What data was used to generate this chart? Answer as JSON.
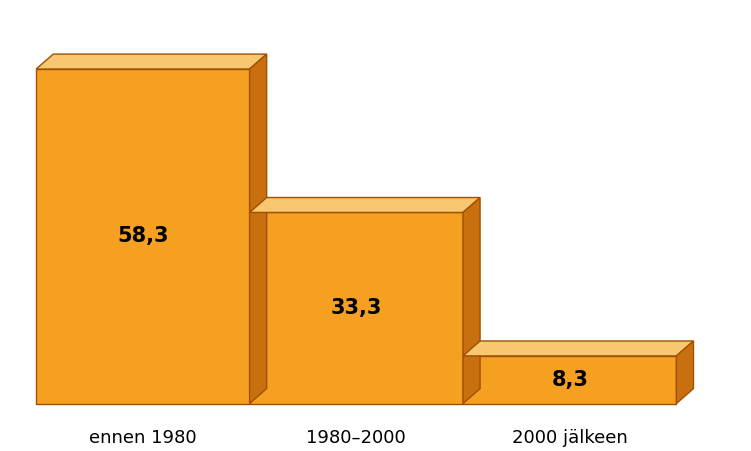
{
  "categories": [
    "ennen 1980",
    "1980–2000",
    "2000 jälkeen"
  ],
  "values": [
    58.3,
    33.3,
    8.3
  ],
  "bar_color_face": "#F5A020",
  "bar_color_top": "#F8C870",
  "bar_color_right": "#C87010",
  "bar_color_bottom_edge": "#A05000",
  "label_color": "#000000",
  "background_color": "#FFFFFF",
  "label_fontsize": 15,
  "tick_fontsize": 13,
  "bar_gap": 0.02,
  "depth_ratio": 0.04,
  "ylim_max": 65
}
